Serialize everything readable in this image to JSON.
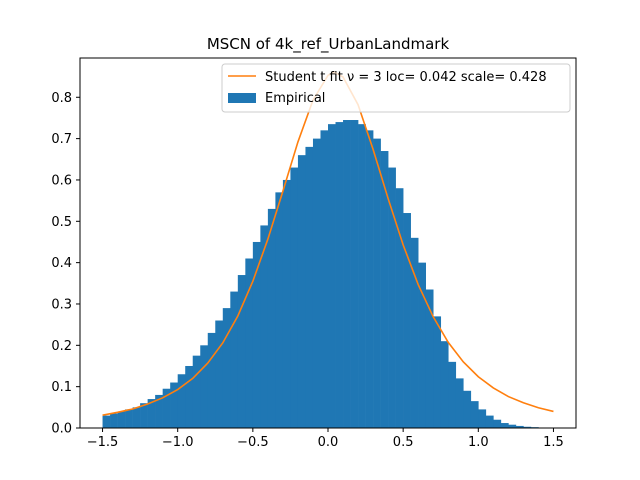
{
  "chart_data": {
    "type": "bar",
    "title": "MSCN of 4k_ref_UrbanLandmark",
    "xlabel": "",
    "ylabel": "",
    "xlim": [
      -1.65,
      1.65
    ],
    "ylim": [
      0,
      0.895
    ],
    "xticks": [
      -1.5,
      -1.0,
      -0.5,
      0.0,
      0.5,
      1.0,
      1.5
    ],
    "xtick_labels": [
      "−1.5",
      "−1.0",
      "−0.5",
      "0.0",
      "0.5",
      "1.0",
      "1.5"
    ],
    "yticks": [
      0.0,
      0.1,
      0.2,
      0.3,
      0.4,
      0.5,
      0.6,
      0.7,
      0.8
    ],
    "ytick_labels": [
      "0.0",
      "0.1",
      "0.2",
      "0.3",
      "0.4",
      "0.5",
      "0.6",
      "0.7",
      "0.8"
    ],
    "grid": false,
    "legend_placement": "upper right",
    "colors": {
      "histogram": "#1f77b4",
      "fit_line": "#ff7f0e"
    },
    "series": [
      {
        "name": "Empirical",
        "kind": "histogram",
        "x": [
          -1.475,
          -1.425,
          -1.375,
          -1.325,
          -1.275,
          -1.225,
          -1.175,
          -1.125,
          -1.075,
          -1.025,
          -0.975,
          -0.925,
          -0.875,
          -0.825,
          -0.775,
          -0.725,
          -0.675,
          -0.625,
          -0.575,
          -0.525,
          -0.475,
          -0.425,
          -0.375,
          -0.325,
          -0.275,
          -0.225,
          -0.175,
          -0.125,
          -0.075,
          -0.025,
          0.025,
          0.075,
          0.125,
          0.175,
          0.225,
          0.275,
          0.325,
          0.375,
          0.425,
          0.475,
          0.525,
          0.575,
          0.625,
          0.675,
          0.725,
          0.775,
          0.825,
          0.875,
          0.925,
          0.975,
          1.025,
          1.075,
          1.125,
          1.175,
          1.225,
          1.275,
          1.325,
          1.375,
          1.425,
          1.475
        ],
        "values": [
          0.03,
          0.035,
          0.04,
          0.045,
          0.05,
          0.06,
          0.07,
          0.08,
          0.095,
          0.11,
          0.13,
          0.15,
          0.175,
          0.2,
          0.23,
          0.26,
          0.29,
          0.33,
          0.37,
          0.41,
          0.45,
          0.49,
          0.53,
          0.57,
          0.6,
          0.63,
          0.66,
          0.68,
          0.7,
          0.72,
          0.735,
          0.74,
          0.745,
          0.745,
          0.735,
          0.72,
          0.7,
          0.67,
          0.63,
          0.58,
          0.52,
          0.46,
          0.4,
          0.335,
          0.27,
          0.21,
          0.16,
          0.12,
          0.09,
          0.065,
          0.045,
          0.03,
          0.02,
          0.012,
          0.008,
          0.005,
          0.003,
          0.002,
          0.001,
          0.001
        ]
      },
      {
        "name": "Student t fit ν = 3 loc= 0.042 scale= 0.428",
        "kind": "line",
        "df": 3,
        "loc": 0.042,
        "scale": 0.428,
        "x": [
          -1.5,
          -1.4,
          -1.3,
          -1.2,
          -1.1,
          -1.0,
          -0.9,
          -0.8,
          -0.7,
          -0.6,
          -0.5,
          -0.4,
          -0.3,
          -0.2,
          -0.1,
          0.0,
          0.042,
          0.1,
          0.2,
          0.3,
          0.4,
          0.5,
          0.6,
          0.7,
          0.8,
          0.9,
          1.0,
          1.1,
          1.2,
          1.3,
          1.4,
          1.5
        ],
        "values": [
          0.031,
          0.038,
          0.046,
          0.058,
          0.073,
          0.093,
          0.12,
          0.157,
          0.206,
          0.271,
          0.355,
          0.457,
          0.573,
          0.692,
          0.793,
          0.853,
          0.861,
          0.849,
          0.782,
          0.674,
          0.555,
          0.443,
          0.347,
          0.269,
          0.207,
          0.16,
          0.124,
          0.097,
          0.076,
          0.061,
          0.049,
          0.04
        ]
      }
    ]
  }
}
